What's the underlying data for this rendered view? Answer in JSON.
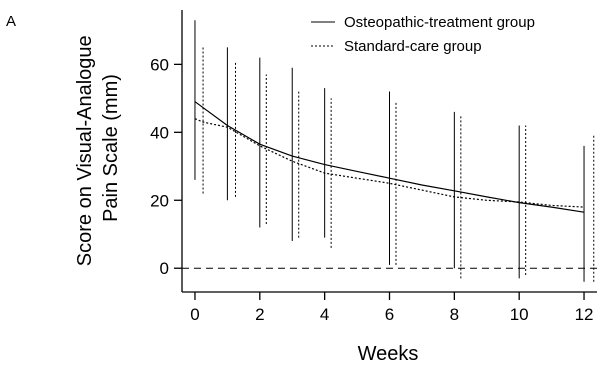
{
  "panel_label": "A",
  "chart_data": {
    "type": "line",
    "title": "",
    "xlabel": "Weeks",
    "ylabel": [
      "Score on Visual-Analogue",
      "Pain Scale (mm)"
    ],
    "xlim": [
      -0.4,
      12.4
    ],
    "ylim": [
      -7,
      76
    ],
    "xticks": [
      0,
      2,
      4,
      6,
      8,
      10,
      12
    ],
    "yticks": [
      0,
      20,
      40,
      60
    ],
    "reference_line": {
      "y": 0,
      "style": "dashed"
    },
    "legend_position": "top-right",
    "series": [
      {
        "name": "Osteopathic-treatment group",
        "line_style": "solid",
        "color": "#000000",
        "fit_curve": {
          "x": [
            0,
            1,
            2,
            3,
            4,
            5,
            6,
            7,
            8,
            9,
            10,
            11,
            12
          ],
          "y": [
            49,
            42,
            36.5,
            33,
            30.5,
            28.5,
            26.5,
            24.5,
            22.8,
            21,
            19.3,
            18,
            16.5
          ]
        },
        "error_bars": [
          {
            "x": 0,
            "low": 26,
            "high": 73
          },
          {
            "x": 1,
            "low": 20,
            "high": 65
          },
          {
            "x": 2,
            "low": 12,
            "high": 62
          },
          {
            "x": 3,
            "low": 8,
            "high": 59
          },
          {
            "x": 4,
            "low": 9,
            "high": 53
          },
          {
            "x": 6,
            "low": 1,
            "high": 52
          },
          {
            "x": 8,
            "low": 0,
            "high": 46
          },
          {
            "x": 10,
            "low": -3,
            "high": 42
          },
          {
            "x": 12,
            "low": -4,
            "high": 36
          }
        ]
      },
      {
        "name": "Standard-care group",
        "line_style": "dotted",
        "color": "#000000",
        "fit_curve": {
          "x": [
            0,
            0.25,
            1,
            2,
            3,
            4,
            5,
            6,
            7,
            8,
            9,
            10,
            11,
            12
          ],
          "y": [
            44,
            43,
            41.5,
            36,
            31.5,
            28,
            26.5,
            25,
            23,
            21,
            20,
            19.5,
            18.5,
            18
          ]
        },
        "error_bars": [
          {
            "x": 0.25,
            "low": 22,
            "high": 65
          },
          {
            "x": 1.25,
            "low": 21,
            "high": 61
          },
          {
            "x": 2.2,
            "low": 13,
            "high": 57
          },
          {
            "x": 3.2,
            "low": 9,
            "high": 52
          },
          {
            "x": 4.2,
            "low": 6,
            "high": 50
          },
          {
            "x": 6.2,
            "low": 1,
            "high": 49
          },
          {
            "x": 8.2,
            "low": -3,
            "high": 45
          },
          {
            "x": 10.2,
            "low": -2,
            "high": 42
          },
          {
            "x": 12.3,
            "low": -4,
            "high": 39
          }
        ]
      }
    ]
  }
}
